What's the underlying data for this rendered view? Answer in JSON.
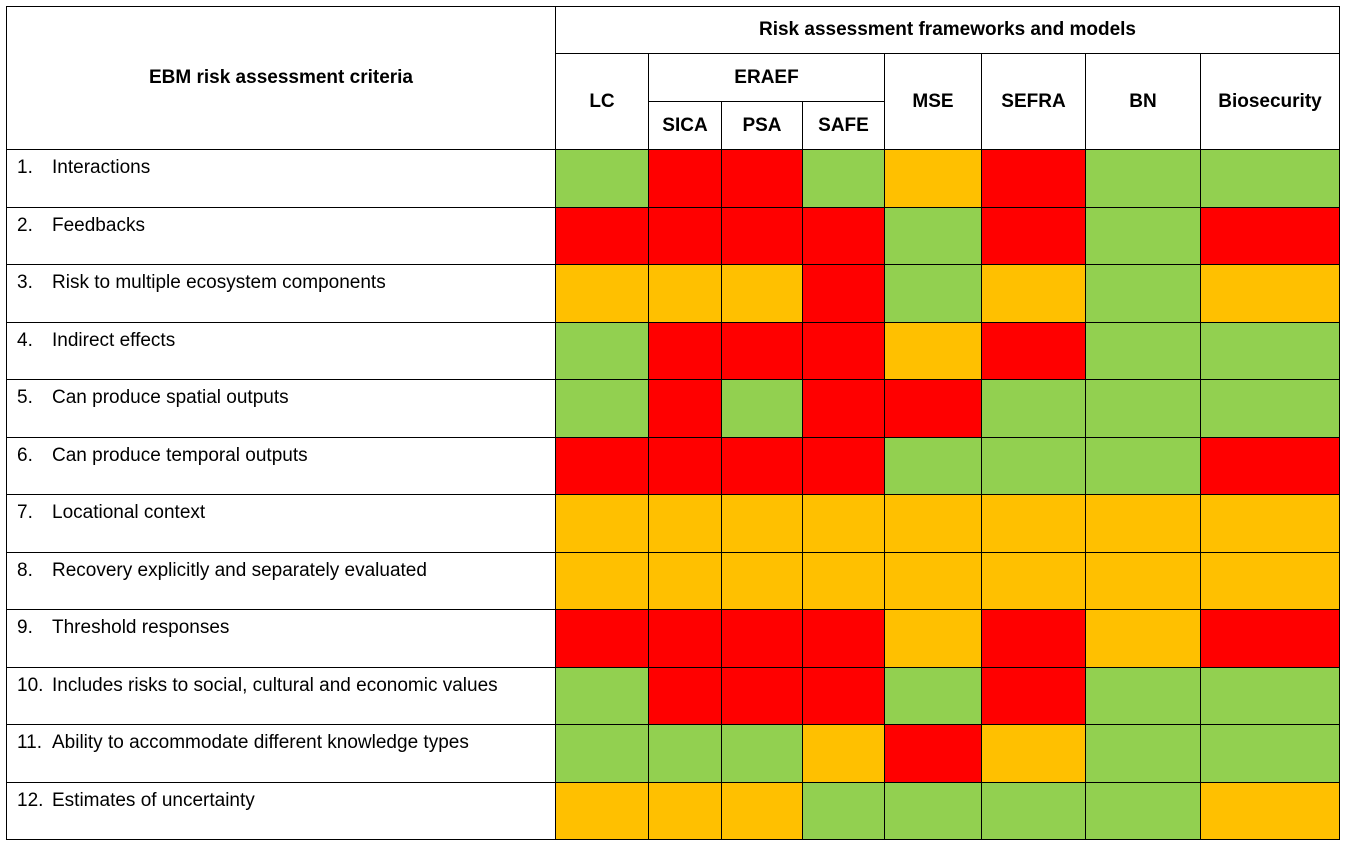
{
  "table": {
    "criteria_header": "EBM risk assessment criteria",
    "frameworks_header": "Risk assessment frameworks and models",
    "eraef_header": "ERAEF",
    "columns": {
      "lc": "LC",
      "sica": "SICA",
      "psa": "PSA",
      "safe": "SAFE",
      "mse": "MSE",
      "sefra": "SEFRA",
      "bn": "BN",
      "biosecurity": "Biosecurity"
    },
    "column_order": [
      "LC",
      "SICA",
      "PSA",
      "SAFE",
      "MSE",
      "SEFRA",
      "BN",
      "Biosecurity"
    ],
    "colors": {
      "green": "#92d050",
      "red": "#ff0000",
      "amber": "#ffc000"
    },
    "rows": [
      {
        "num": "1.",
        "label": "Interactions",
        "ratings": [
          "green",
          "red",
          "red",
          "green",
          "amber",
          "red",
          "green",
          "green"
        ]
      },
      {
        "num": "2.",
        "label": "Feedbacks",
        "ratings": [
          "red",
          "red",
          "red",
          "red",
          "green",
          "red",
          "green",
          "red"
        ]
      },
      {
        "num": "3.",
        "label": "Risk to multiple ecosystem components",
        "ratings": [
          "amber",
          "amber",
          "amber",
          "red",
          "green",
          "amber",
          "green",
          "amber"
        ]
      },
      {
        "num": "4.",
        "label": "Indirect effects",
        "ratings": [
          "green",
          "red",
          "red",
          "red",
          "amber",
          "red",
          "green",
          "green"
        ]
      },
      {
        "num": "5.",
        "label": "Can produce spatial outputs",
        "ratings": [
          "green",
          "red",
          "green",
          "red",
          "red",
          "green",
          "green",
          "green"
        ]
      },
      {
        "num": "6.",
        "label": "Can produce temporal outputs",
        "ratings": [
          "red",
          "red",
          "red",
          "red",
          "green",
          "green",
          "green",
          "red"
        ]
      },
      {
        "num": "7.",
        "label": "Locational context",
        "ratings": [
          "amber",
          "amber",
          "amber",
          "amber",
          "amber",
          "amber",
          "amber",
          "amber"
        ]
      },
      {
        "num": "8.",
        "label": "Recovery explicitly and separately evaluated",
        "ratings": [
          "amber",
          "amber",
          "amber",
          "amber",
          "amber",
          "amber",
          "amber",
          "amber"
        ]
      },
      {
        "num": "9.",
        "label": "Threshold responses",
        "ratings": [
          "red",
          "red",
          "red",
          "red",
          "amber",
          "red",
          "amber",
          "red"
        ]
      },
      {
        "num": "10.",
        "label": "Includes risks to social, cultural and economic values",
        "ratings": [
          "green",
          "red",
          "red",
          "red",
          "green",
          "red",
          "green",
          "green"
        ]
      },
      {
        "num": "11.",
        "label": "Ability to accommodate different knowledge types",
        "ratings": [
          "green",
          "green",
          "green",
          "amber",
          "red",
          "amber",
          "green",
          "green"
        ]
      },
      {
        "num": "12.",
        "label": "Estimates of uncertainty",
        "ratings": [
          "amber",
          "amber",
          "amber",
          "green",
          "green",
          "green",
          "green",
          "amber"
        ]
      }
    ]
  }
}
